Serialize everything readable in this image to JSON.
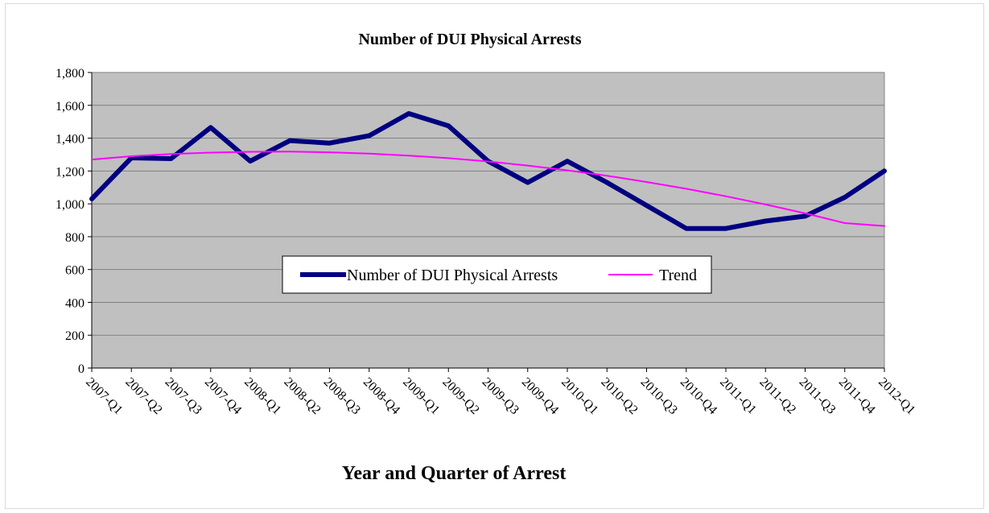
{
  "chart_data": {
    "type": "line",
    "title": "Number of DUI Physical Arrests",
    "xlabel": "Year and Quarter of Arrest",
    "ylabel": "",
    "ylim": [
      0,
      1800
    ],
    "yticks": [
      "0",
      "200",
      "400",
      "600",
      "800",
      "1,000",
      "1,200",
      "1,400",
      "1,600",
      "1,800"
    ],
    "ytick_values": [
      0,
      200,
      400,
      600,
      800,
      1000,
      1200,
      1400,
      1600,
      1800
    ],
    "categories": [
      "2007-Q1",
      "2007-Q2",
      "2007-Q3",
      "2007-Q4",
      "2008-Q1",
      "2008-Q2",
      "2008-Q3",
      "2008-Q4",
      "2009-Q1",
      "2009-Q2",
      "2009-Q3",
      "2009-Q4",
      "2010-Q1",
      "2010-Q2",
      "2010-Q3",
      "2010-Q4",
      "2011-Q1",
      "2011-Q2",
      "2011-Q3",
      "2011-Q4",
      "2012-Q1"
    ],
    "series": [
      {
        "name": "Number of DUI Physical Arrests",
        "color": "#000080",
        "values": [
          1030,
          1280,
          1275,
          1465,
          1260,
          1385,
          1370,
          1415,
          1550,
          1475,
          1260,
          1130,
          1260,
          1130,
          990,
          850,
          850,
          895,
          925,
          1040,
          1200
        ]
      },
      {
        "name": "Trend",
        "color": "#ff00ff",
        "values": [
          1270,
          1290,
          1303,
          1312,
          1317,
          1318,
          1314,
          1306,
          1294,
          1278,
          1258,
          1233,
          1204,
          1171,
          1133,
          1092,
          1046,
          996,
          942,
          883,
          865
        ]
      }
    ],
    "grid": true,
    "plot_background": "#c0c0c0",
    "legend_position": "center"
  }
}
